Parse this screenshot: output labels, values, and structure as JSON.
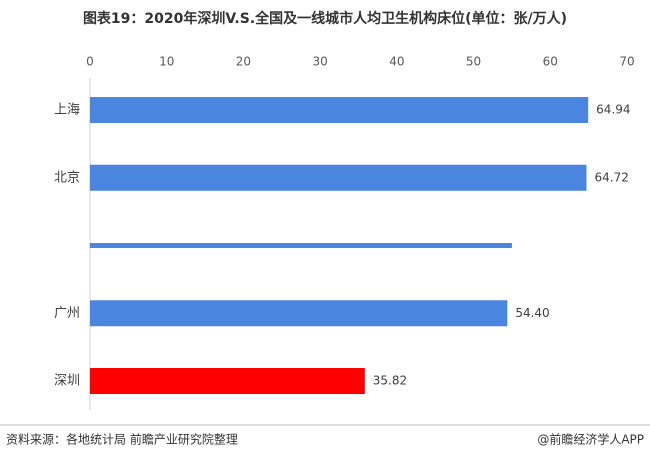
{
  "chart_data": {
    "type": "bar",
    "orientation": "horizontal",
    "title": "图表19：2020年深圳V.S.全国及一线城市人均卫生机构床位(单位：张/万人)",
    "categories": [
      "上海",
      "北京",
      null,
      "广州",
      "深圳"
    ],
    "values": [
      64.94,
      64.72,
      55.0,
      54.4,
      35.82
    ],
    "value_labels": [
      "64.94",
      "64.72",
      null,
      "54.40",
      "35.82"
    ],
    "colors": [
      "#4a86e0",
      "#4a86e0",
      "#4a86e0",
      "#4a86e0",
      "#ff0000"
    ],
    "xlim": [
      0,
      70
    ],
    "xticks": [
      0,
      10,
      20,
      30,
      40,
      50,
      60,
      70
    ],
    "source": "资料来源：各地统计局 前瞻产业研究院整理",
    "credit": "@前瞻经济学人APP"
  }
}
